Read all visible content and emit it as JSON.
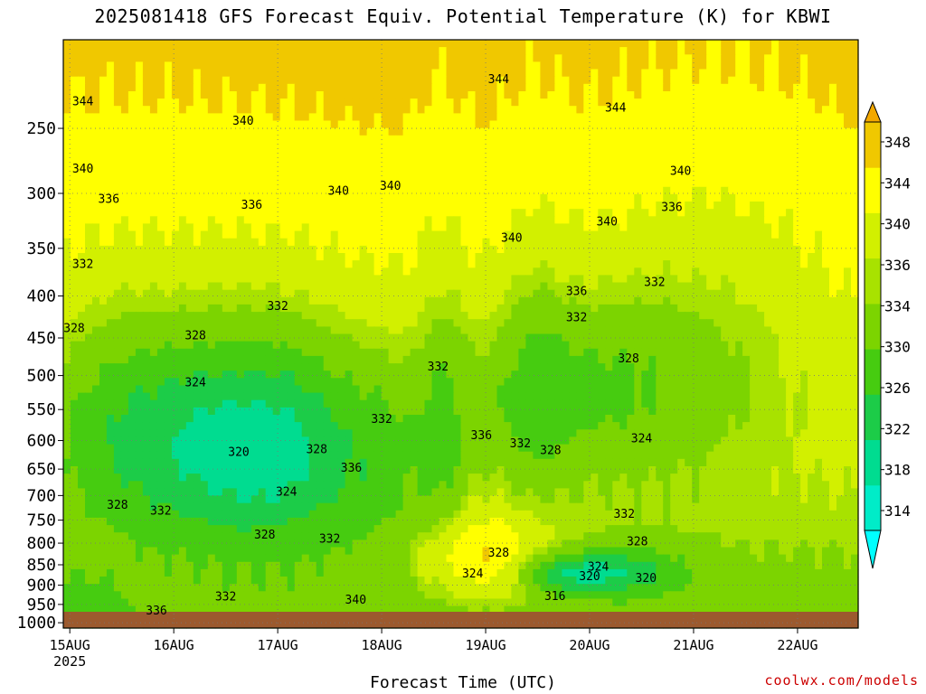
{
  "title": "2025081418 GFS Forecast Equiv. Potential Temperature (K) for KBWI",
  "xlabel": "Forecast Time (UTC)",
  "credit": "coolwx.com/models",
  "chart_data": {
    "type": "heatmap",
    "title": "2025081418 GFS Forecast Equiv. Potential Temperature (K) for KBWI",
    "xlabel": "Forecast Time (UTC)",
    "ylabel": "",
    "x_tick_labels": [
      "15AUG",
      "16AUG",
      "17AUG",
      "18AUG",
      "19AUG",
      "20AUG",
      "21AUG",
      "22AUG"
    ],
    "x_sub_label": "2025",
    "x_range_hours": [
      -1.5,
      182
    ],
    "y_ticks": [
      250,
      300,
      350,
      400,
      450,
      500,
      550,
      600,
      650,
      700,
      750,
      800,
      850,
      900,
      950,
      1000
    ],
    "y_range": [
      195,
      1015
    ],
    "y_scale": "log",
    "colorbar_levels": [
      314,
      318,
      322,
      326,
      330,
      334,
      336,
      340,
      344,
      348
    ],
    "colorbar_label_values": [
      348,
      344,
      340,
      336,
      334,
      330,
      326,
      322,
      318,
      314
    ],
    "colors": {
      "c_ge348": "#f3a800",
      "c_344_348": "#f0c800",
      "c_340_344": "#ffff00",
      "c_336_340": "#d2f000",
      "c_334_336": "#a8e200",
      "c_330_334": "#7cd400",
      "c_326_330": "#46cc10",
      "c_322_326": "#1ccc48",
      "c_318_322": "#00dc90",
      "c_314_318": "#00ecc8",
      "c_lt314": "#00ffff",
      "ground": "#9c5a2e"
    },
    "grid": true,
    "contour_labels": [
      {
        "t": 3,
        "p": 232,
        "v": "344"
      },
      {
        "t": 40,
        "p": 245,
        "v": "340"
      },
      {
        "t": 99,
        "p": 218,
        "v": "344"
      },
      {
        "t": 126,
        "p": 236,
        "v": "344"
      },
      {
        "t": 3,
        "p": 280,
        "v": "340"
      },
      {
        "t": 9,
        "p": 305,
        "v": "336"
      },
      {
        "t": 42,
        "p": 310,
        "v": "336"
      },
      {
        "t": 62,
        "p": 298,
        "v": "340"
      },
      {
        "t": 74,
        "p": 294,
        "v": "340"
      },
      {
        "t": 102,
        "p": 340,
        "v": "340"
      },
      {
        "t": 124,
        "p": 325,
        "v": "340"
      },
      {
        "t": 141,
        "p": 282,
        "v": "340"
      },
      {
        "t": 139,
        "p": 312,
        "v": "336"
      },
      {
        "t": 3,
        "p": 366,
        "v": "332"
      },
      {
        "t": 48,
        "p": 412,
        "v": "332"
      },
      {
        "t": 1,
        "p": 438,
        "v": "328"
      },
      {
        "t": 29,
        "p": 447,
        "v": "328"
      },
      {
        "t": 29,
        "p": 510,
        "v": "324"
      },
      {
        "t": 117,
        "p": 395,
        "v": "336"
      },
      {
        "t": 117,
        "p": 425,
        "v": "332"
      },
      {
        "t": 135,
        "p": 385,
        "v": "332"
      },
      {
        "t": 129,
        "p": 477,
        "v": "328"
      },
      {
        "t": 85,
        "p": 488,
        "v": "332"
      },
      {
        "t": 72,
        "p": 565,
        "v": "332"
      },
      {
        "t": 95,
        "p": 592,
        "v": "336"
      },
      {
        "t": 104,
        "p": 605,
        "v": "332"
      },
      {
        "t": 111,
        "p": 617,
        "v": "328"
      },
      {
        "t": 132,
        "p": 597,
        "v": "324"
      },
      {
        "t": 39,
        "p": 620,
        "v": "320"
      },
      {
        "t": 57,
        "p": 615,
        "v": "328"
      },
      {
        "t": 65,
        "p": 648,
        "v": "336"
      },
      {
        "t": 50,
        "p": 693,
        "v": "324"
      },
      {
        "t": 11,
        "p": 719,
        "v": "328"
      },
      {
        "t": 21,
        "p": 731,
        "v": "332"
      },
      {
        "t": 45,
        "p": 782,
        "v": "328"
      },
      {
        "t": 60,
        "p": 791,
        "v": "332"
      },
      {
        "t": 99,
        "p": 822,
        "v": "328"
      },
      {
        "t": 93,
        "p": 872,
        "v": "324"
      },
      {
        "t": 122,
        "p": 855,
        "v": "324"
      },
      {
        "t": 120,
        "p": 878,
        "v": "320"
      },
      {
        "t": 133,
        "p": 883,
        "v": "320"
      },
      {
        "t": 131,
        "p": 797,
        "v": "328"
      },
      {
        "t": 128,
        "p": 738,
        "v": "332"
      },
      {
        "t": 112,
        "p": 929,
        "v": "316"
      },
      {
        "t": 36,
        "p": 930,
        "v": "332"
      },
      {
        "t": 20,
        "p": 967,
        "v": "336"
      },
      {
        "t": 66,
        "p": 938,
        "v": "340"
      }
    ]
  }
}
